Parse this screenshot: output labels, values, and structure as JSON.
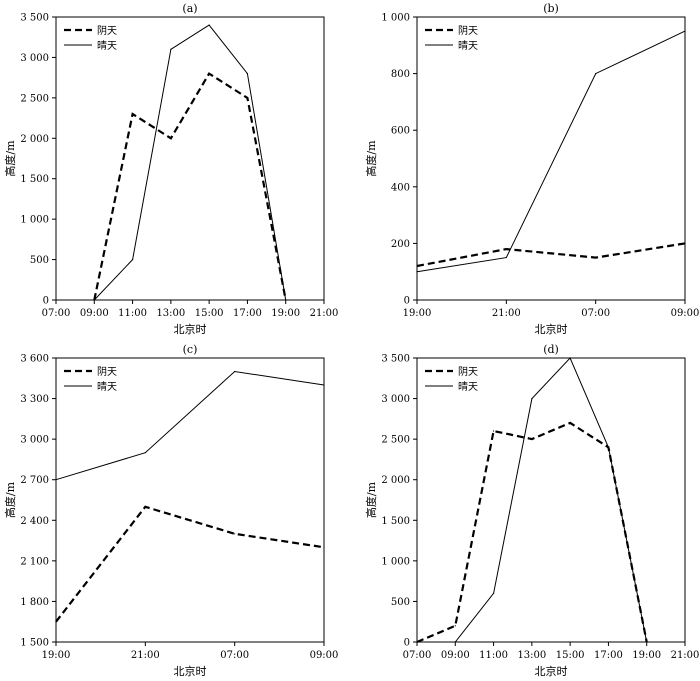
{
  "chart_data": [
    {
      "type": "line",
      "title": "(a)",
      "xlabel": "北京时",
      "ylabel": "高度/m",
      "categories": [
        "07:00",
        "09:00",
        "11:00",
        "13:00",
        "15:00",
        "17:00",
        "19:00",
        "21:00"
      ],
      "yticks": [
        "0",
        "500",
        "1 000",
        "1 500",
        "2 000",
        "2 500",
        "3 000",
        "3 500"
      ],
      "ylim": [
        0,
        3500
      ],
      "legend": "top-left",
      "grid": false,
      "series": [
        {
          "name": "阴天",
          "style": "dashed",
          "x": [
            1,
            2,
            3,
            4,
            5,
            6
          ],
          "values": [
            0,
            2300,
            2000,
            2800,
            2500,
            0
          ]
        },
        {
          "name": "晴天",
          "style": "solid",
          "x": [
            1,
            2,
            3,
            4,
            5,
            6
          ],
          "values": [
            0,
            500,
            3100,
            3400,
            2800,
            0
          ]
        }
      ]
    },
    {
      "type": "line",
      "title": "(b)",
      "xlabel": "北京时",
      "ylabel": "高度/m",
      "categories": [
        "19:00",
        "21:00",
        "07:00",
        "09:00"
      ],
      "yticks": [
        "0",
        "200",
        "400",
        "600",
        "800",
        "1 000"
      ],
      "ylim": [
        0,
        1000
      ],
      "legend": "top-left",
      "grid": false,
      "series": [
        {
          "name": "阴天",
          "style": "dashed",
          "x": [
            0,
            1,
            2,
            3
          ],
          "values": [
            120,
            180,
            150,
            200
          ]
        },
        {
          "name": "晴天",
          "style": "solid",
          "x": [
            0,
            1,
            2,
            3
          ],
          "values": [
            100,
            150,
            800,
            950
          ]
        }
      ]
    },
    {
      "type": "line",
      "title": "(c)",
      "xlabel": "北京时",
      "ylabel": "高度/m",
      "categories": [
        "19:00",
        "21:00",
        "07:00",
        "09:00"
      ],
      "yticks": [
        "1 500",
        "1 800",
        "2 100",
        "2 400",
        "2 700",
        "3 000",
        "3 300",
        "3 600"
      ],
      "ylim": [
        1500,
        3600
      ],
      "legend": "top-left",
      "grid": false,
      "series": [
        {
          "name": "阴天",
          "style": "dashed",
          "x": [
            0,
            1,
            2,
            3
          ],
          "values": [
            1650,
            2500,
            2300,
            2200
          ]
        },
        {
          "name": "晴天",
          "style": "solid",
          "x": [
            0,
            1,
            2,
            3
          ],
          "values": [
            2700,
            2900,
            3500,
            3400
          ]
        }
      ]
    },
    {
      "type": "line",
      "title": "(d)",
      "xlabel": "北京时",
      "ylabel": "高度/m",
      "categories": [
        "07:00",
        "09:00",
        "11:00",
        "13:00",
        "15:00",
        "17:00",
        "19:00",
        "21:00"
      ],
      "yticks": [
        "0",
        "500",
        "1 000",
        "1 500",
        "2 000",
        "2 500",
        "3 000",
        "3 500"
      ],
      "ylim": [
        0,
        3500
      ],
      "legend": "top-left",
      "grid": false,
      "series": [
        {
          "name": "阴天",
          "style": "dashed",
          "x": [
            0,
            1,
            2,
            3,
            4,
            5,
            6
          ],
          "values": [
            0,
            200,
            2600,
            2500,
            2700,
            2400,
            0
          ]
        },
        {
          "name": "晴天",
          "style": "solid",
          "x": [
            1,
            2,
            3,
            4,
            5,
            6
          ],
          "values": [
            0,
            600,
            3000,
            3500,
            2400,
            0
          ]
        }
      ]
    }
  ]
}
